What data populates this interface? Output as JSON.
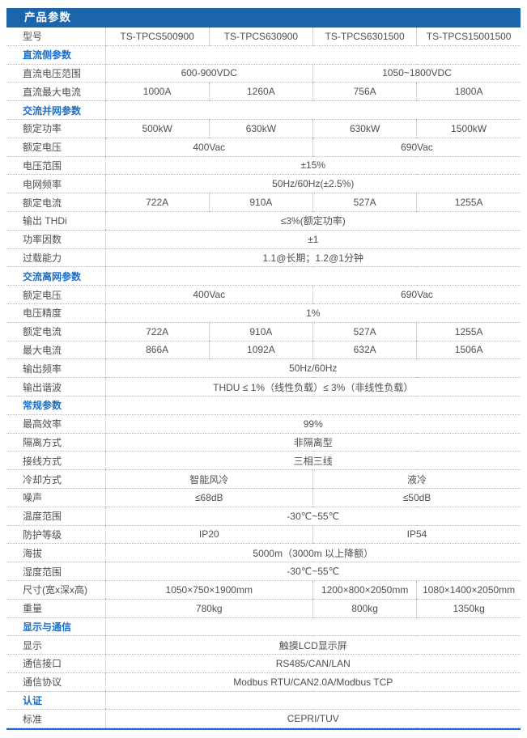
{
  "header": {
    "title": "产品参数"
  },
  "colors": {
    "header_bar_bg": "#1b65ad",
    "header_bar_text": "#ffffff",
    "section_text": "#1a6fc9",
    "body_text": "#4f4f4f",
    "dotted_border": "#b9b9b9",
    "bottom_accent_line": "#1a6fd0"
  },
  "table": {
    "rows": [
      {
        "type": "data",
        "label": "型号",
        "cells": [
          {
            "text": "TS-TPCS500900",
            "span": 1
          },
          {
            "text": "TS-TPCS630900",
            "span": 1
          },
          {
            "text": "TS-TPCS6301500",
            "span": 1
          },
          {
            "text": "TS-TPCS15001500",
            "span": 1
          }
        ]
      },
      {
        "type": "section",
        "label": "直流侧参数"
      },
      {
        "type": "data",
        "label": "直流电压范围",
        "cells": [
          {
            "text": "600-900VDC",
            "span": 2
          },
          {
            "text": "1050~1800VDC",
            "span": 2
          }
        ]
      },
      {
        "type": "data",
        "label": "直流最大电流",
        "cells": [
          {
            "text": "1000A",
            "span": 1
          },
          {
            "text": "1260A",
            "span": 1
          },
          {
            "text": "756A",
            "span": 1
          },
          {
            "text": "1800A",
            "span": 1
          }
        ]
      },
      {
        "type": "section",
        "label": "交流并网参数"
      },
      {
        "type": "data",
        "label": "额定功率",
        "cells": [
          {
            "text": "500kW",
            "span": 1
          },
          {
            "text": "630kW",
            "span": 1
          },
          {
            "text": "630kW",
            "span": 1
          },
          {
            "text": "1500kW",
            "span": 1
          }
        ]
      },
      {
        "type": "data",
        "label": "额定电压",
        "cells": [
          {
            "text": "400Vac",
            "span": 2
          },
          {
            "text": "690Vac",
            "span": 2
          }
        ]
      },
      {
        "type": "data",
        "label": "电压范围",
        "cells": [
          {
            "text": "±15%",
            "span": 4
          }
        ]
      },
      {
        "type": "data",
        "label": "电网频率",
        "cells": [
          {
            "text": "50Hz/60Hz(±2.5%)",
            "span": 4
          }
        ]
      },
      {
        "type": "data",
        "label": "额定电流",
        "cells": [
          {
            "text": "722A",
            "span": 1
          },
          {
            "text": "910A",
            "span": 1
          },
          {
            "text": "527A",
            "span": 1
          },
          {
            "text": "1255A",
            "span": 1
          }
        ]
      },
      {
        "type": "data",
        "label": "输出 THDi",
        "cells": [
          {
            "text": "≤3%(额定功率)",
            "span": 4
          }
        ]
      },
      {
        "type": "data",
        "label": "功率因数",
        "cells": [
          {
            "text": "±1",
            "span": 4
          }
        ]
      },
      {
        "type": "data",
        "label": "过载能力",
        "cells": [
          {
            "text": "1.1@长期；1.2@1分钟",
            "span": 4
          }
        ]
      },
      {
        "type": "section",
        "label": "交流离网参数"
      },
      {
        "type": "data",
        "label": "额定电压",
        "cells": [
          {
            "text": "400Vac",
            "span": 2
          },
          {
            "text": "690Vac",
            "span": 2
          }
        ]
      },
      {
        "type": "data",
        "label": "电压精度",
        "cells": [
          {
            "text": "1%",
            "span": 4
          }
        ]
      },
      {
        "type": "data",
        "label": "额定电流",
        "cells": [
          {
            "text": "722A",
            "span": 1
          },
          {
            "text": "910A",
            "span": 1
          },
          {
            "text": "527A",
            "span": 1
          },
          {
            "text": "1255A",
            "span": 1
          }
        ]
      },
      {
        "type": "data",
        "label": "最大电流",
        "cells": [
          {
            "text": "866A",
            "span": 1
          },
          {
            "text": "1092A",
            "span": 1
          },
          {
            "text": "632A",
            "span": 1
          },
          {
            "text": "1506A",
            "span": 1
          }
        ]
      },
      {
        "type": "data",
        "label": "输出频率",
        "cells": [
          {
            "text": "50Hz/60Hz",
            "span": 4
          }
        ]
      },
      {
        "type": "data",
        "label": "输出谐波",
        "cells": [
          {
            "text": "THDU ≤ 1%（线性负载）≤ 3%（非线性负载）",
            "span": 4
          }
        ]
      },
      {
        "type": "section",
        "label": "常规参数"
      },
      {
        "type": "data",
        "label": "最高效率",
        "cells": [
          {
            "text": "99%",
            "span": 4
          }
        ]
      },
      {
        "type": "data",
        "label": "隔离方式",
        "cells": [
          {
            "text": "非隔离型",
            "span": 4
          }
        ]
      },
      {
        "type": "data",
        "label": "接线方式",
        "cells": [
          {
            "text": "三相三线",
            "span": 4
          }
        ]
      },
      {
        "type": "data",
        "label": "冷却方式",
        "cells": [
          {
            "text": "智能风冷",
            "span": 2
          },
          {
            "text": "液冷",
            "span": 2
          }
        ]
      },
      {
        "type": "data",
        "label": "噪声",
        "cells": [
          {
            "text": "≤68dB",
            "span": 2
          },
          {
            "text": "≤50dB",
            "span": 2
          }
        ]
      },
      {
        "type": "data",
        "label": "温度范围",
        "cells": [
          {
            "text": "-30℃~55℃",
            "span": 4
          }
        ]
      },
      {
        "type": "data",
        "label": "防护等级",
        "cells": [
          {
            "text": "IP20",
            "span": 2
          },
          {
            "text": "IP54",
            "span": 2
          }
        ]
      },
      {
        "type": "data",
        "label": "海拔",
        "cells": [
          {
            "text": "5000m（3000m 以上降额）",
            "span": 4
          }
        ]
      },
      {
        "type": "data",
        "label": "湿度范围",
        "cells": [
          {
            "text": "-30℃~55℃",
            "span": 4
          }
        ]
      },
      {
        "type": "data",
        "label": "尺寸(宽x深x高)",
        "cells": [
          {
            "text": "1050×750×1900mm",
            "span": 2
          },
          {
            "text": "1200×800×2050mm",
            "span": 1
          },
          {
            "text": "1080×1400×2050mm",
            "span": 1
          }
        ]
      },
      {
        "type": "data",
        "label": "重量",
        "cells": [
          {
            "text": "780kg",
            "span": 2
          },
          {
            "text": "800kg",
            "span": 1
          },
          {
            "text": "1350kg",
            "span": 1
          }
        ]
      },
      {
        "type": "section",
        "label": "显示与通信"
      },
      {
        "type": "data",
        "label": "显示",
        "cells": [
          {
            "text": "触摸LCD显示屏",
            "span": 4
          }
        ]
      },
      {
        "type": "data",
        "label": "通信接口",
        "cells": [
          {
            "text": "RS485/CAN/LAN",
            "span": 4
          }
        ]
      },
      {
        "type": "data",
        "label": "通信协议",
        "cells": [
          {
            "text": "Modbus RTU/CAN2.0A/Modbus TCP",
            "span": 4
          }
        ]
      },
      {
        "type": "section",
        "label": "认证"
      },
      {
        "type": "data",
        "label": "标准",
        "cells": [
          {
            "text": "CEPRI/TUV",
            "span": 4
          }
        ]
      }
    ]
  }
}
